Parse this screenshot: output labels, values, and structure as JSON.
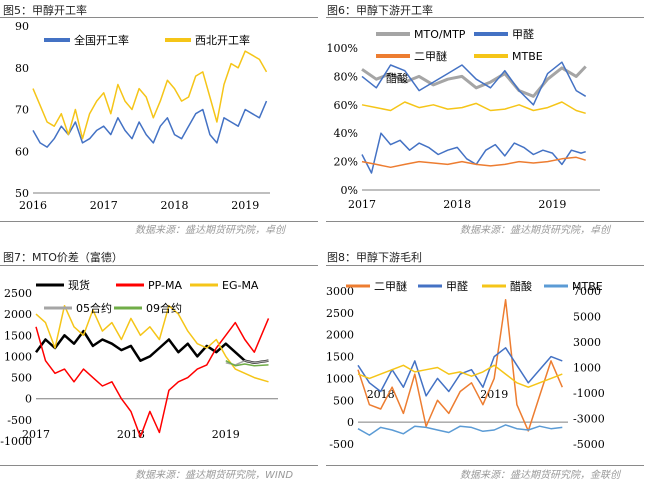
{
  "panels": [
    {
      "title": "图5：甲醇开工率"
    },
    {
      "title": "图6：甲醇下游开工率"
    },
    {
      "title": "图7：MTO价差（富德）"
    },
    {
      "title": "图8：甲醇下游毛利"
    }
  ],
  "sources": {
    "top_left": "数据来源：盛达期货研究院，卓创",
    "top_right": "数据来源：盛达期货研究院，卓创",
    "bottom_left": "数据来源：盛达期货研究院，WIND",
    "bottom_right": "数据来源：盛达期货研究院，金联创"
  },
  "colors": {
    "blue": "#4472c4",
    "yellow": "#f5c518",
    "gray": "#a5a5a5",
    "orange": "#ed7d31",
    "black": "#000000",
    "red": "#ff0000",
    "green": "#70ad47",
    "lightblue": "#5b9bd5"
  },
  "chart_data": [
    {
      "type": "line",
      "title": "图5：甲醇开工率",
      "xlim": [
        2016.0,
        2019.35
      ],
      "xticks": [
        "2016",
        "2017",
        "2018",
        "2019"
      ],
      "xtick_values": [
        2016,
        2017,
        2018,
        2019
      ],
      "ylim": [
        50,
        90
      ],
      "yticks": [
        "50",
        "60",
        "70",
        "80",
        "90"
      ],
      "ytick_values": [
        50,
        60,
        70,
        80,
        90
      ],
      "legend_position": "top",
      "series": [
        {
          "name": "全国开工率",
          "color": "#4472c4",
          "x": [
            2016.0,
            2016.1,
            2016.2,
            2016.3,
            2016.4,
            2016.5,
            2016.6,
            2016.7,
            2016.8,
            2016.9,
            2017.0,
            2017.1,
            2017.2,
            2017.3,
            2017.4,
            2017.5,
            2017.6,
            2017.7,
            2017.8,
            2017.9,
            2018.0,
            2018.1,
            2018.2,
            2018.3,
            2018.4,
            2018.5,
            2018.6,
            2018.7,
            2018.8,
            2018.9,
            2019.0,
            2019.1,
            2019.2,
            2019.3
          ],
          "y": [
            65,
            62,
            61,
            63,
            66,
            64,
            67,
            62,
            63,
            65,
            66,
            64,
            68,
            65,
            63,
            67,
            64,
            62,
            66,
            68,
            64,
            63,
            66,
            69,
            70,
            64,
            62,
            68,
            67,
            66,
            70,
            69,
            68,
            72
          ]
        },
        {
          "name": "西北开工率",
          "color": "#f5c518",
          "x": [
            2016.0,
            2016.1,
            2016.2,
            2016.3,
            2016.4,
            2016.5,
            2016.6,
            2016.7,
            2016.8,
            2016.9,
            2017.0,
            2017.1,
            2017.2,
            2017.3,
            2017.4,
            2017.5,
            2017.6,
            2017.7,
            2017.8,
            2017.9,
            2018.0,
            2018.1,
            2018.2,
            2018.3,
            2018.4,
            2018.5,
            2018.6,
            2018.7,
            2018.8,
            2018.9,
            2019.0,
            2019.1,
            2019.2,
            2019.3
          ],
          "y": [
            75,
            71,
            67,
            66,
            69,
            64,
            70,
            63,
            69,
            72,
            74,
            69,
            76,
            72,
            70,
            75,
            73,
            68,
            72,
            77,
            75,
            72,
            73,
            78,
            79,
            73,
            67,
            76,
            81,
            80,
            84,
            83,
            82,
            79
          ]
        }
      ]
    },
    {
      "type": "line",
      "title": "图6：甲醇下游开工率",
      "xlim": [
        2017.0,
        2019.5
      ],
      "xticks": [
        "2017",
        "2018",
        "2019"
      ],
      "xtick_values": [
        2017,
        2018,
        2019
      ],
      "ylim": [
        0,
        100
      ],
      "yticks": [
        "0%",
        "20%",
        "40%",
        "60%",
        "80%",
        "100%"
      ],
      "ytick_values": [
        0,
        20,
        40,
        60,
        80,
        100
      ],
      "legend_position": "top",
      "series": [
        {
          "name": "MTO/MTP",
          "color": "#a5a5a5",
          "x": [
            2017.0,
            2017.15,
            2017.3,
            2017.45,
            2017.6,
            2017.75,
            2017.9,
            2018.05,
            2018.2,
            2018.35,
            2018.5,
            2018.65,
            2018.8,
            2018.95,
            2019.1,
            2019.25,
            2019.35
          ],
          "y": [
            85,
            78,
            82,
            76,
            80,
            74,
            78,
            80,
            72,
            76,
            82,
            70,
            66,
            78,
            86,
            80,
            87
          ]
        },
        {
          "name": "甲醛",
          "color": "#4472c4",
          "x": [
            2017.0,
            2017.1,
            2017.2,
            2017.3,
            2017.4,
            2017.5,
            2017.6,
            2017.7,
            2017.8,
            2017.9,
            2018.0,
            2018.1,
            2018.2,
            2018.3,
            2018.4,
            2018.5,
            2018.6,
            2018.7,
            2018.8,
            2018.9,
            2019.0,
            2019.1,
            2019.2,
            2019.3,
            2019.35
          ],
          "y": [
            25,
            12,
            40,
            32,
            35,
            28,
            33,
            30,
            25,
            28,
            30,
            22,
            18,
            28,
            32,
            24,
            33,
            30,
            25,
            28,
            26,
            18,
            28,
            26,
            27
          ]
        },
        {
          "name": "二甲醚",
          "color": "#ed7d31",
          "x": [
            2017.0,
            2017.15,
            2017.3,
            2017.45,
            2017.6,
            2017.75,
            2017.9,
            2018.05,
            2018.2,
            2018.35,
            2018.5,
            2018.65,
            2018.8,
            2018.95,
            2019.1,
            2019.25,
            2019.35
          ],
          "y": [
            20,
            18,
            16,
            18,
            20,
            19,
            18,
            20,
            18,
            17,
            18,
            20,
            19,
            20,
            22,
            23,
            21
          ]
        },
        {
          "name": "MTBE",
          "color": "#f5c518",
          "x": [
            2017.0,
            2017.15,
            2017.3,
            2017.45,
            2017.6,
            2017.75,
            2017.9,
            2018.05,
            2018.2,
            2018.35,
            2018.5,
            2018.65,
            2018.8,
            2018.95,
            2019.1,
            2019.25,
            2019.35
          ],
          "y": [
            60,
            58,
            56,
            62,
            58,
            60,
            57,
            58,
            61,
            56,
            57,
            60,
            56,
            58,
            62,
            56,
            54
          ]
        },
        {
          "name": "醋酸",
          "color": "#4472c4",
          "x": [
            2017.0,
            2017.15,
            2017.3,
            2017.45,
            2017.6,
            2017.75,
            2017.9,
            2018.05,
            2018.2,
            2018.35,
            2018.5,
            2018.65,
            2018.8,
            2018.95,
            2019.1,
            2019.25,
            2019.35
          ],
          "y": [
            80,
            72,
            88,
            84,
            70,
            76,
            82,
            88,
            78,
            72,
            84,
            70,
            60,
            82,
            90,
            70,
            66
          ]
        }
      ]
    },
    {
      "type": "line",
      "title": "图7：MTO价差（富德）",
      "xlim": [
        2017.0,
        2019.55
      ],
      "xticks": [
        "2017",
        "2018",
        "2019"
      ],
      "xtick_values": [
        2017,
        2018,
        2019
      ],
      "ylim": [
        -1000,
        2500
      ],
      "yticks": [
        "-1000",
        "-500",
        "0",
        "500",
        "1000",
        "1500",
        "2000",
        "2500"
      ],
      "ytick_values": [
        -1000,
        -500,
        0,
        500,
        1000,
        1500,
        2000,
        2500
      ],
      "legend_position": "top",
      "series": [
        {
          "name": "现货",
          "color": "#000000",
          "x": [
            2017.0,
            2017.1,
            2017.2,
            2017.3,
            2017.4,
            2017.5,
            2017.6,
            2017.7,
            2017.8,
            2017.9,
            2018.0,
            2018.1,
            2018.2,
            2018.3,
            2018.4,
            2018.5,
            2018.6,
            2018.7,
            2018.8,
            2018.9,
            2019.0,
            2019.1,
            2019.2,
            2019.3,
            2019.45
          ],
          "y": [
            1100,
            1400,
            1200,
            1500,
            1300,
            1600,
            1250,
            1400,
            1300,
            1150,
            1250,
            900,
            1000,
            1200,
            1400,
            1100,
            1300,
            1000,
            1250,
            1100,
            1300,
            1100,
            900,
            850,
            900
          ]
        },
        {
          "name": "PP-MA",
          "color": "#ff0000",
          "x": [
            2017.0,
            2017.1,
            2017.2,
            2017.3,
            2017.4,
            2017.5,
            2017.6,
            2017.7,
            2017.8,
            2017.9,
            2018.0,
            2018.1,
            2018.2,
            2018.3,
            2018.4,
            2018.5,
            2018.6,
            2018.7,
            2018.8,
            2018.9,
            2019.0,
            2019.1,
            2019.2,
            2019.3,
            2019.45
          ],
          "y": [
            1700,
            900,
            600,
            700,
            400,
            700,
            500,
            300,
            400,
            0,
            -300,
            -900,
            -300,
            -800,
            200,
            400,
            500,
            700,
            800,
            1200,
            1500,
            1800,
            1400,
            1100,
            1900
          ]
        },
        {
          "name": "EG-MA",
          "color": "#f5c518",
          "x": [
            2017.0,
            2017.1,
            2017.2,
            2017.3,
            2017.4,
            2017.5,
            2017.6,
            2017.7,
            2017.8,
            2017.9,
            2018.0,
            2018.1,
            2018.2,
            2018.3,
            2018.4,
            2018.5,
            2018.6,
            2018.7,
            2018.8,
            2018.9,
            2019.0,
            2019.1,
            2019.2,
            2019.3,
            2019.45
          ],
          "y": [
            2000,
            1800,
            1200,
            2200,
            1700,
            1500,
            2100,
            1600,
            1800,
            1400,
            1900,
            1500,
            1700,
            1400,
            2200,
            2000,
            1600,
            1300,
            1200,
            1400,
            1000,
            700,
            600,
            500,
            400
          ]
        },
        {
          "name": "05合约",
          "color": "#a5a5a5",
          "x": [
            2019.0,
            2019.1,
            2019.2,
            2019.3,
            2019.45
          ],
          "y": [
            850,
            800,
            900,
            850,
            900
          ]
        },
        {
          "name": "09合约",
          "color": "#70ad47",
          "x": [
            2019.0,
            2019.1,
            2019.2,
            2019.3,
            2019.45
          ],
          "y": [
            900,
            780,
            820,
            780,
            800
          ]
        }
      ]
    },
    {
      "type": "line",
      "title": "图8：甲醇下游毛利",
      "xlim": [
        2017.8,
        2019.65
      ],
      "xticks": [
        "2018",
        "2019"
      ],
      "xtick_values": [
        2018,
        2019
      ],
      "ylim": [
        -500,
        3000
      ],
      "yticks": [
        "-500",
        "0",
        "500",
        "1000",
        "1500",
        "2000",
        "2500",
        "3000"
      ],
      "ytick_values": [
        -500,
        0,
        500,
        1000,
        1500,
        2000,
        2500,
        3000
      ],
      "y2lim": [
        -5000,
        7000
      ],
      "y2ticks": [
        "-5000",
        "-3000",
        "-1000",
        "1000",
        "3000",
        "5000",
        "7000"
      ],
      "y2tick_values": [
        -5000,
        -3000,
        -1000,
        1000,
        3000,
        5000,
        7000
      ],
      "legend_position": "top",
      "series": [
        {
          "name": "二甲醚",
          "color": "#ed7d31",
          "axis": "left",
          "x": [
            2017.8,
            2017.9,
            2018.0,
            2018.1,
            2018.2,
            2018.3,
            2018.4,
            2018.5,
            2018.6,
            2018.7,
            2018.8,
            2018.9,
            2019.0,
            2019.1,
            2019.2,
            2019.3,
            2019.4,
            2019.5,
            2019.6
          ],
          "y": [
            1200,
            400,
            300,
            800,
            200,
            1100,
            -100,
            500,
            200,
            700,
            900,
            400,
            1000,
            2800,
            400,
            -200,
            600,
            1400,
            800
          ]
        },
        {
          "name": "甲醛",
          "color": "#4472c4",
          "axis": "left",
          "x": [
            2017.8,
            2017.9,
            2018.0,
            2018.1,
            2018.2,
            2018.3,
            2018.4,
            2018.5,
            2018.6,
            2018.7,
            2018.8,
            2018.9,
            2019.0,
            2019.1,
            2019.2,
            2019.3,
            2019.4,
            2019.5,
            2019.6
          ],
          "y": [
            1300,
            900,
            700,
            1200,
            800,
            1400,
            600,
            1000,
            700,
            1100,
            1200,
            800,
            1500,
            1700,
            1300,
            900,
            1200,
            1500,
            1400
          ]
        },
        {
          "name": "醋酸",
          "color": "#f5c518",
          "axis": "left",
          "x": [
            2017.8,
            2017.9,
            2018.0,
            2018.1,
            2018.2,
            2018.3,
            2018.4,
            2018.5,
            2018.6,
            2018.7,
            2018.8,
            2018.9,
            2019.0,
            2019.1,
            2019.2,
            2019.3,
            2019.4,
            2019.5,
            2019.6
          ],
          "y": [
            1100,
            1000,
            1100,
            1200,
            1300,
            1150,
            1200,
            1250,
            1100,
            1150,
            1050,
            1150,
            1300,
            1100,
            900,
            800,
            900,
            1000,
            1100
          ]
        },
        {
          "name": "MTBE",
          "color": "#5b9bd5",
          "axis": "right",
          "x": [
            2017.8,
            2017.9,
            2018.0,
            2018.1,
            2018.2,
            2018.3,
            2018.4,
            2018.5,
            2018.6,
            2018.7,
            2018.8,
            2018.9,
            2019.0,
            2019.1,
            2019.2,
            2019.3,
            2019.4,
            2019.5,
            2019.6
          ],
          "y": [
            -3800,
            -4300,
            -3700,
            -3900,
            -4200,
            -3600,
            -3700,
            -3900,
            -4100,
            -3600,
            -3700,
            -4000,
            -3900,
            -3500,
            -3800,
            -3900,
            -3600,
            -3800,
            -3700
          ]
        }
      ]
    }
  ]
}
